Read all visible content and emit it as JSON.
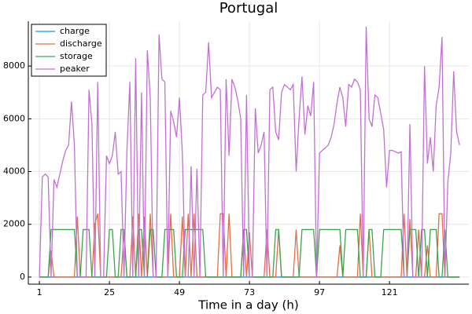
{
  "chart_data": {
    "type": "line",
    "title": "Portugal",
    "xlabel": "Time in a day (h)",
    "x": [
      1,
      2,
      3,
      4,
      5,
      6,
      7,
      8,
      9,
      10,
      11,
      12,
      13,
      14,
      15,
      16,
      17,
      18,
      19,
      20,
      21,
      22,
      23,
      24,
      25,
      26,
      27,
      28,
      29,
      30,
      31,
      32,
      33,
      34,
      35,
      36,
      37,
      38,
      39,
      40,
      41,
      42,
      43,
      44,
      45,
      46,
      47,
      48,
      49,
      50,
      51,
      52,
      53,
      54,
      55,
      56,
      57,
      58,
      59,
      60,
      61,
      62,
      63,
      64,
      65,
      66,
      67,
      68,
      69,
      70,
      71,
      72,
      73,
      74,
      75,
      76,
      77,
      78,
      79,
      80,
      81,
      82,
      83,
      84,
      85,
      86,
      87,
      88,
      89,
      90,
      91,
      92,
      93,
      94,
      95,
      96,
      97,
      98,
      99,
      100,
      101,
      102,
      103,
      104,
      105,
      106,
      107,
      108,
      109,
      110,
      111,
      112,
      113,
      114,
      115,
      116,
      117,
      118,
      119,
      120,
      121,
      122,
      123,
      124,
      125,
      126,
      127,
      128,
      129,
      130,
      131,
      132,
      133,
      134,
      135,
      136,
      137,
      138,
      139,
      140,
      141,
      142,
      143,
      144,
      145
    ],
    "series": [
      {
        "name": "charge",
        "color": "#009af9",
        "values": [
          0,
          0,
          0,
          0,
          0,
          0,
          0,
          0,
          0,
          0,
          0,
          0,
          0,
          0,
          0,
          0,
          0,
          0,
          0,
          0,
          0,
          0,
          0,
          0,
          0,
          0,
          0,
          0,
          0,
          0,
          0,
          0,
          0,
          0,
          0,
          0,
          0,
          0,
          0,
          0,
          0,
          0,
          0,
          0,
          0,
          0,
          0,
          0,
          0,
          0,
          0,
          0,
          0,
          0,
          0,
          0,
          0,
          0,
          0,
          0,
          0,
          0,
          0,
          0,
          0,
          0,
          0,
          0,
          0,
          0,
          0,
          0,
          0,
          0,
          0,
          0,
          0,
          0,
          0,
          0,
          0,
          0,
          0,
          0,
          0,
          0,
          0,
          0,
          0,
          0,
          0,
          0,
          0,
          0,
          0,
          0,
          0,
          0,
          0,
          0,
          0,
          0,
          0,
          0,
          0,
          0,
          0,
          0,
          0,
          0,
          0,
          0,
          0,
          0,
          0,
          0,
          0,
          0,
          0,
          0,
          0,
          0,
          0,
          0,
          0,
          0,
          0,
          0,
          0,
          0,
          0,
          0,
          0,
          0,
          0,
          0,
          0,
          0,
          0,
          0,
          0,
          0,
          0,
          0,
          0
        ]
      },
      {
        "name": "discharge",
        "color": "#e26f46",
        "values": [
          0,
          0,
          0,
          0,
          1000,
          0,
          0,
          0,
          0,
          0,
          0,
          0,
          0,
          2300,
          0,
          0,
          0,
          0,
          0,
          2000,
          2400,
          0,
          0,
          0,
          0,
          0,
          0,
          0,
          0,
          1700,
          0,
          0,
          2300,
          0,
          2400,
          0,
          2300,
          0,
          2400,
          0,
          0,
          0,
          0,
          0,
          0,
          2400,
          0,
          0,
          0,
          2300,
          0,
          2400,
          0,
          2400,
          0,
          0,
          0,
          0,
          0,
          0,
          0,
          0,
          2400,
          2400,
          0,
          2400,
          0,
          0,
          0,
          0,
          1800,
          0,
          1700,
          0,
          0,
          0,
          0,
          0,
          1800,
          0,
          0,
          0,
          1800,
          0,
          0,
          0,
          0,
          0,
          1800,
          0,
          0,
          0,
          0,
          0,
          0,
          0,
          0,
          0,
          0,
          0,
          0,
          0,
          0,
          1200,
          0,
          0,
          0,
          0,
          0,
          0,
          2400,
          0,
          0,
          1800,
          0,
          0,
          0,
          0,
          0,
          0,
          0,
          0,
          0,
          0,
          0,
          2400,
          0,
          2200,
          0,
          0,
          1800,
          0,
          0,
          1200,
          0,
          0,
          0,
          2400,
          2400,
          0,
          0,
          0,
          0,
          0,
          0
        ]
      },
      {
        "name": "storage",
        "color": "#3da44d",
        "values": [
          0,
          0,
          0,
          0,
          1800,
          1800,
          1800,
          1800,
          1800,
          1800,
          1800,
          1800,
          1800,
          0,
          0,
          1800,
          1800,
          1800,
          0,
          0,
          0,
          0,
          0,
          0,
          1800,
          1800,
          0,
          0,
          1800,
          1800,
          0,
          0,
          0,
          0,
          1800,
          1800,
          0,
          0,
          1800,
          1800,
          0,
          0,
          0,
          1800,
          1800,
          1800,
          1800,
          0,
          0,
          0,
          1800,
          1800,
          1800,
          1800,
          1800,
          1800,
          1800,
          0,
          0,
          0,
          0,
          0,
          0,
          0,
          0,
          0,
          0,
          0,
          0,
          0,
          1800,
          1800,
          0,
          0,
          0,
          0,
          0,
          0,
          0,
          0,
          0,
          1800,
          1800,
          0,
          0,
          0,
          0,
          0,
          0,
          0,
          1800,
          1800,
          1800,
          1800,
          1800,
          0,
          1800,
          1800,
          1800,
          1800,
          1800,
          1800,
          1800,
          1800,
          0,
          1800,
          1800,
          1800,
          1800,
          1800,
          0,
          0,
          0,
          1800,
          1800,
          0,
          0,
          0,
          1800,
          1800,
          1800,
          1800,
          1800,
          1800,
          1800,
          0,
          0,
          1800,
          1800,
          1800,
          0,
          1800,
          1800,
          0,
          1800,
          1800,
          1800,
          0,
          0,
          1800,
          0,
          0,
          0,
          0,
          0
        ]
      },
      {
        "name": "peaker",
        "color": "#c271d2",
        "values": [
          0,
          3800,
          3900,
          3800,
          0,
          3700,
          3400,
          3900,
          4400,
          4800,
          5000,
          6650,
          5000,
          0,
          0,
          0,
          0,
          7100,
          5800,
          0,
          7400,
          0,
          0,
          4600,
          4300,
          4600,
          5500,
          3900,
          4000,
          0,
          4800,
          7400,
          0,
          8300,
          0,
          7000,
          0,
          8600,
          6800,
          0,
          0,
          9200,
          7500,
          7400,
          0,
          6300,
          5900,
          5300,
          6800,
          4700,
          0,
          0,
          4200,
          0,
          4100,
          0,
          6900,
          7000,
          8900,
          6800,
          7000,
          7200,
          7100,
          0,
          7500,
          4600,
          7500,
          7200,
          6700,
          6000,
          0,
          6900,
          0,
          0,
          6400,
          4700,
          5000,
          5500,
          0,
          7100,
          7200,
          5500,
          5200,
          7000,
          7300,
          7200,
          7100,
          7300,
          4000,
          6000,
          7600,
          5400,
          6500,
          6100,
          7400,
          0,
          4700,
          4800,
          4900,
          5000,
          5300,
          5800,
          6600,
          7200,
          6800,
          5700,
          7300,
          7200,
          7500,
          7400,
          7100,
          0,
          9500,
          6000,
          5700,
          6900,
          6800,
          6200,
          5600,
          3400,
          4800,
          4800,
          4750,
          4700,
          4750,
          0,
          0,
          5800,
          0,
          0,
          0,
          0,
          8000,
          4300,
          5300,
          4000,
          6500,
          7200,
          9100,
          0,
          3600,
          4700,
          7800,
          5500,
          5000
        ]
      }
    ],
    "xlim": [
      -2.8,
      148.2
    ],
    "xticks": [
      1,
      25,
      49,
      73,
      97,
      121
    ],
    "ylim": [
      -270,
      9700
    ],
    "yticks": [
      0,
      2000,
      4000,
      6000,
      8000
    ],
    "grid": true,
    "legend": "top-left"
  }
}
